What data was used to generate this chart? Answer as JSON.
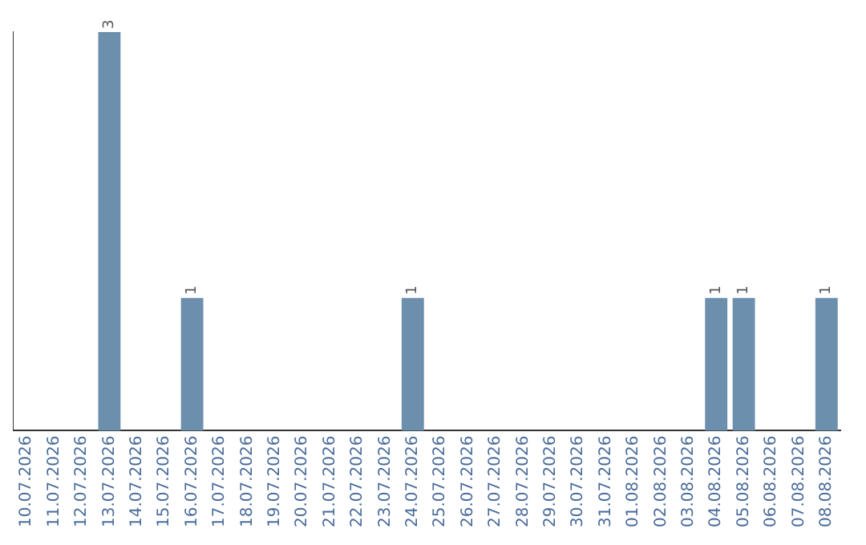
{
  "chart_data": {
    "type": "bar",
    "categories": [
      "10.07.2026",
      "11.07.2026",
      "12.07.2026",
      "13.07.2026",
      "14.07.2026",
      "15.07.2026",
      "16.07.2026",
      "17.07.2026",
      "18.07.2026",
      "19.07.2026",
      "20.07.2026",
      "21.07.2026",
      "22.07.2026",
      "23.07.2026",
      "24.07.2026",
      "25.07.2026",
      "26.07.2026",
      "27.07.2026",
      "28.07.2026",
      "29.07.2026",
      "30.07.2026",
      "31.07.2026",
      "01.08.2026",
      "02.08.2026",
      "03.08.2026",
      "04.08.2026",
      "05.08.2026",
      "06.08.2026",
      "07.08.2026",
      "08.08.2026"
    ],
    "values": [
      0,
      0,
      0,
      3,
      0,
      0,
      1,
      0,
      0,
      0,
      0,
      0,
      0,
      0,
      1,
      0,
      0,
      0,
      0,
      0,
      0,
      0,
      0,
      0,
      0,
      1,
      1,
      0,
      0,
      1
    ],
    "value_labels": [
      null,
      null,
      null,
      "3",
      null,
      null,
      "1",
      null,
      null,
      null,
      null,
      null,
      null,
      null,
      "1",
      null,
      null,
      null,
      null,
      null,
      null,
      null,
      null,
      null,
      null,
      "1",
      "1",
      null,
      null,
      "1"
    ],
    "color": "#6d8fae",
    "grid": false,
    "legend": false,
    "tick_labels": "x"
  }
}
